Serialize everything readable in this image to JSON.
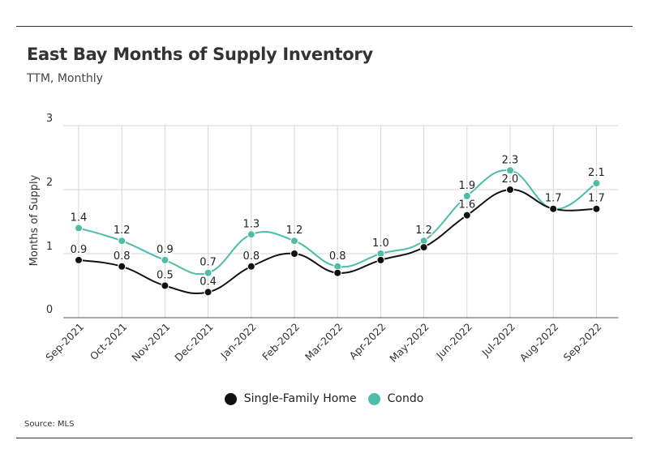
{
  "title": "East Bay Months of Supply Inventory",
  "subtitle": "TTM, Monthly",
  "source": "Source:  MLS",
  "colors": {
    "single_family": "#111111",
    "condo": "#4dbda7",
    "grid": "#d6d6d6",
    "axis": "#555555"
  },
  "chart_data": {
    "type": "line",
    "title": "East Bay Months of Supply Inventory",
    "subtitle": "TTM, Monthly",
    "xlabel": "",
    "ylabel": "Months of Supply",
    "ylim": [
      0,
      3
    ],
    "yticks": [
      "0",
      "1",
      "2",
      "3"
    ],
    "grid": true,
    "legend_position": "bottom",
    "categories": [
      "Sep-2021",
      "Oct-2021",
      "Nov-2021",
      "Dec-2021",
      "Jan-2022",
      "Feb-2022",
      "Mar-2022",
      "Apr-2022",
      "May-2022",
      "Jun-2022",
      "Jul-2022",
      "Aug-2022",
      "Sep-2022"
    ],
    "series": [
      {
        "name": "Single-Family Home",
        "values": [
          0.9,
          0.8,
          0.5,
          0.4,
          0.8,
          1.0,
          0.7,
          0.9,
          1.1,
          1.6,
          2.0,
          1.7,
          1.7
        ],
        "labels": [
          "0.9",
          "0.8",
          "0.5",
          "0.4",
          "0.8",
          "",
          "",
          "",
          "",
          "1.6",
          "2.0",
          "",
          "1.7"
        ]
      },
      {
        "name": "Condo",
        "values": [
          1.4,
          1.2,
          0.9,
          0.7,
          1.3,
          1.2,
          0.8,
          1.0,
          1.2,
          1.9,
          2.3,
          1.7,
          2.1
        ],
        "labels": [
          "1.4",
          "1.2",
          "0.9",
          "0.7",
          "1.3",
          "1.2",
          "0.8",
          "1.0",
          "1.2",
          "1.9",
          "2.3",
          "1.7",
          "2.1"
        ]
      }
    ]
  }
}
